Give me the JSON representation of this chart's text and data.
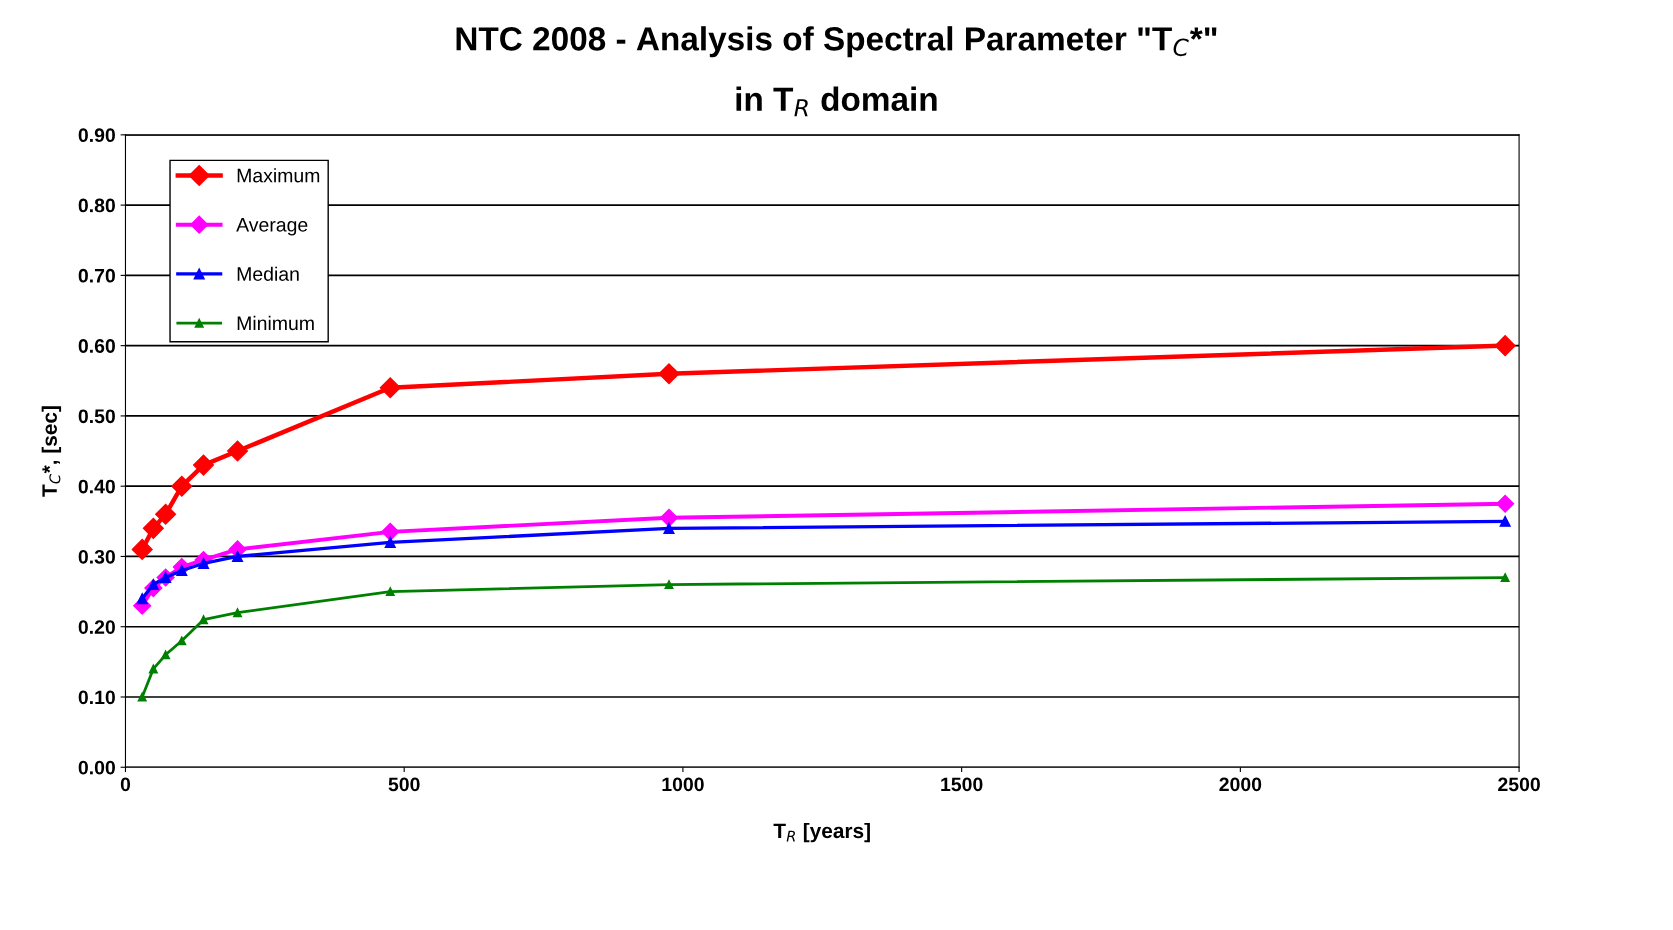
{
  "chart_data": {
    "type": "line",
    "title": "NTC 2008 - Analysis of Spectral Parameter \"T$_{C}$*\"",
    "subtitle": "in T$_{R}$ domain",
    "xlabel": "T$_{R}$ [years]",
    "ylabel": "T$_{C}$*, [sec]",
    "x": [
      30,
      50,
      72,
      101,
      140,
      201,
      475,
      975,
      2475
    ],
    "series": [
      {
        "name": "Maximum",
        "color": "#ff0000",
        "marker": "diamond",
        "values": [
          0.31,
          0.34,
          0.36,
          0.4,
          0.43,
          0.45,
          0.54,
          0.56,
          0.6
        ]
      },
      {
        "name": "Average",
        "color": "#ff00ff",
        "marker": "diamond",
        "values": [
          0.23,
          0.255,
          0.27,
          0.285,
          0.295,
          0.31,
          0.335,
          0.355,
          0.375
        ]
      },
      {
        "name": "Median",
        "color": "#0000ff",
        "marker": "triangle",
        "values": [
          0.24,
          0.26,
          0.27,
          0.28,
          0.29,
          0.3,
          0.32,
          0.34,
          0.35
        ]
      },
      {
        "name": "Minimum",
        "color": "#008000",
        "marker": "triangle",
        "values": [
          0.1,
          0.14,
          0.16,
          0.18,
          0.21,
          0.22,
          0.25,
          0.26,
          0.27
        ]
      }
    ],
    "xlim": [
      0,
      2500
    ],
    "xticks": [
      0,
      500,
      1000,
      1500,
      2000,
      2500
    ],
    "ylim": [
      0,
      0.9
    ],
    "yticks": [
      {
        "value": 0,
        "label": "0.00"
      },
      {
        "value": 0.1,
        "label": "0.10"
      },
      {
        "value": 0.2,
        "label": "0.20"
      },
      {
        "value": 0.3,
        "label": "0.30"
      },
      {
        "value": 0.4,
        "label": "0.40"
      },
      {
        "value": 0.5,
        "label": "0.50"
      },
      {
        "value": 0.6,
        "label": "0.60"
      },
      {
        "value": 0.7,
        "label": "0.70"
      },
      {
        "value": 0.8,
        "label": "0.80"
      },
      {
        "value": 0.9,
        "label": "0.90"
      }
    ],
    "grid": "y",
    "legend": "top left",
    "line_style": "solid"
  }
}
